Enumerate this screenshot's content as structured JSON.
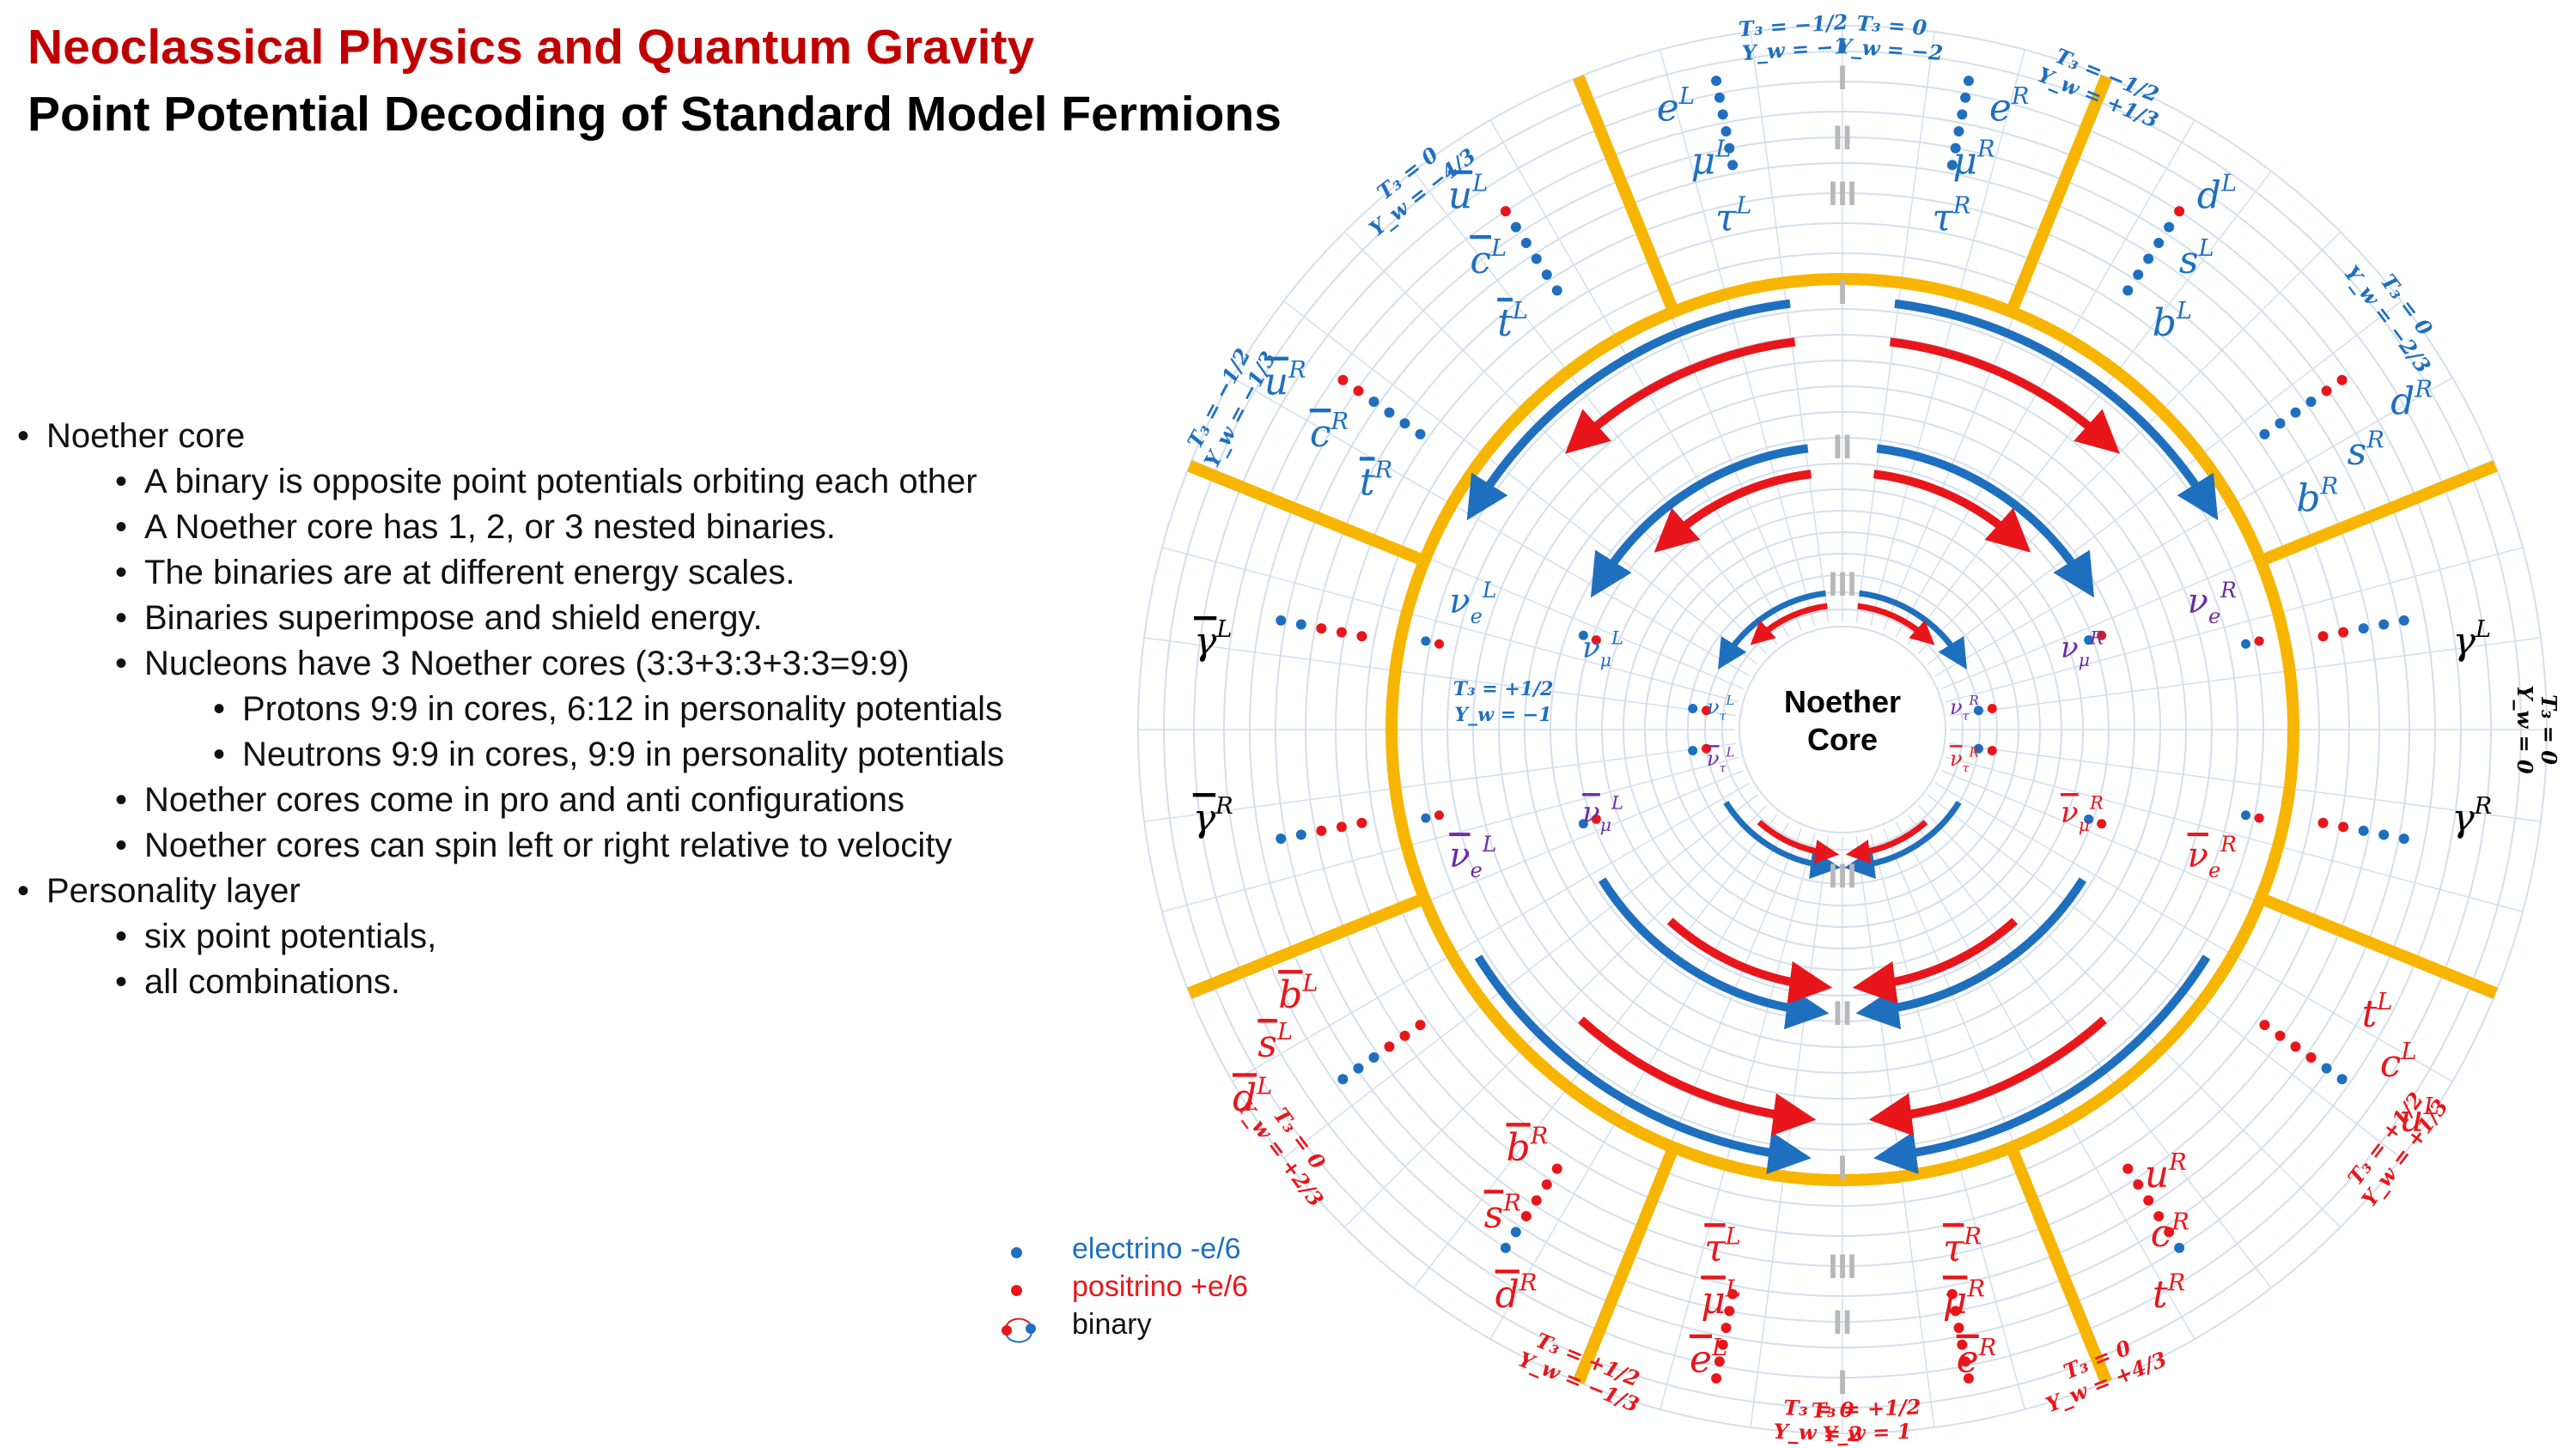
{
  "header": {
    "title": "Neoclassical Physics and Quantum Gravity",
    "subtitle": "Point Potential Decoding of Standard Model Fermions"
  },
  "bullets": [
    {
      "level": 0,
      "text": "Noether core"
    },
    {
      "level": 1,
      "text": "A binary is opposite point potentials orbiting each other"
    },
    {
      "level": 1,
      "text": "A Noether core has 1, 2, or 3 nested binaries."
    },
    {
      "level": 1,
      "text": "The binaries are at different energy scales."
    },
    {
      "level": 1,
      "text": "Binaries superimpose and shield energy."
    },
    {
      "level": 1,
      "text": "Nucleons have 3 Noether cores (3:3+3:3+3:3=9:9)"
    },
    {
      "level": 2,
      "text": "Protons 9:9 in cores, 6:12 in personality potentials"
    },
    {
      "level": 2,
      "text": "Neutrons 9:9 in cores, 9:9 in personality potentials"
    },
    {
      "level": 1,
      "text": "Noether cores come in pro and anti configurations"
    },
    {
      "level": 1,
      "text": "Noether cores can spin left or right relative to velocity"
    },
    {
      "level": 0,
      "text": "Personality layer"
    },
    {
      "level": 1,
      "text": "six point potentials,"
    },
    {
      "level": 1,
      "text": "all combinations."
    }
  ],
  "legend": {
    "electrino": "electrino -e/6",
    "positrino": "positrino +e/6",
    "binary": "binary"
  },
  "colors": {
    "blue": "#1f6fbf",
    "red": "#e8161b",
    "gold": "#f7b500",
    "grid": "#d3dfec",
    "purple": "#6a2fa0",
    "gray": "#b8b8b8"
  },
  "diagram": {
    "core_label": [
      "Noether",
      "Core"
    ],
    "generations": [
      "I",
      "II",
      "III"
    ],
    "quantum_numbers": [
      {
        "t3": "T₃ = −1/2",
        "yw": "Y_w = −1",
        "color": "blue"
      },
      {
        "t3": "T₃ = 0",
        "yw": "Y_w = −2",
        "color": "blue"
      },
      {
        "t3": "T₃ = −1/2",
        "yw": "Y_w = +1/3",
        "color": "blue"
      },
      {
        "t3": "T₃ = 0",
        "yw": "Y_w = −2/3",
        "color": "blue"
      },
      {
        "t3": "T₃ = 0",
        "yw": "Y_w = 0",
        "color": "black"
      },
      {
        "t3": "T₃ = +1/2",
        "yw": "Y_w = +1/3",
        "color": "red"
      },
      {
        "t3": "T₃ = 0",
        "yw": "Y_w = +4/3",
        "color": "red"
      },
      {
        "t3": "T₃ = +1/2",
        "yw": "Y_w = 1",
        "color": "red"
      },
      {
        "t3": "T₃ = 0",
        "yw": "Y_w = 2",
        "color": "red"
      },
      {
        "t3": "T₃ = +1/2",
        "yw": "Y_w = −1/3",
        "color": "red"
      },
      {
        "t3": "T₃ = 0",
        "yw": "Y_w = +2/3",
        "color": "red"
      },
      {
        "t3": "T₃ = −1/2",
        "yw": "Y_w = −1/3",
        "color": "blue"
      },
      {
        "t3": "T₃ = 0",
        "yw": "Y_w = −4/3",
        "color": "blue"
      }
    ],
    "neutrino_qn": {
      "t3": "T₃ = +1/2",
      "yw": "Y_w = −1"
    },
    "fermions": [
      {
        "base": "e",
        "sup": "L",
        "bar": false,
        "color": "blue"
      },
      {
        "base": "μ",
        "sup": "L",
        "bar": false,
        "color": "blue"
      },
      {
        "base": "τ",
        "sup": "L",
        "bar": false,
        "color": "blue"
      },
      {
        "base": "e",
        "sup": "R",
        "bar": false,
        "color": "blue"
      },
      {
        "base": "μ",
        "sup": "R",
        "bar": false,
        "color": "blue"
      },
      {
        "base": "τ",
        "sup": "R",
        "bar": false,
        "color": "blue"
      },
      {
        "base": "d",
        "sup": "L",
        "bar": false,
        "color": "blue"
      },
      {
        "base": "s",
        "sup": "L",
        "bar": false,
        "color": "blue"
      },
      {
        "base": "b",
        "sup": "L",
        "bar": false,
        "color": "blue"
      },
      {
        "base": "d",
        "sup": "R",
        "bar": false,
        "color": "blue"
      },
      {
        "base": "s",
        "sup": "R",
        "bar": false,
        "color": "blue"
      },
      {
        "base": "b",
        "sup": "R",
        "bar": false,
        "color": "blue"
      },
      {
        "base": "γ",
        "sup": "L",
        "bar": false,
        "color": "black"
      },
      {
        "base": "γ",
        "sup": "R",
        "bar": false,
        "color": "black"
      },
      {
        "base": "t",
        "sup": "L",
        "bar": false,
        "color": "red"
      },
      {
        "base": "c",
        "sup": "L",
        "bar": false,
        "color": "red"
      },
      {
        "base": "u",
        "sup": "L",
        "bar": false,
        "color": "red"
      },
      {
        "base": "t",
        "sup": "R",
        "bar": false,
        "color": "red"
      },
      {
        "base": "c",
        "sup": "R",
        "bar": false,
        "color": "red"
      },
      {
        "base": "u",
        "sup": "R",
        "bar": false,
        "color": "red"
      },
      {
        "base": "τ",
        "sup": "R",
        "bar": true,
        "color": "red"
      },
      {
        "base": "μ",
        "sup": "R",
        "bar": true,
        "color": "red"
      },
      {
        "base": "e",
        "sup": "R",
        "bar": true,
        "color": "red"
      },
      {
        "base": "τ",
        "sup": "L",
        "bar": true,
        "color": "red"
      },
      {
        "base": "μ",
        "sup": "L",
        "bar": true,
        "color": "red"
      },
      {
        "base": "e",
        "sup": "L",
        "bar": true,
        "color": "red"
      },
      {
        "base": "b",
        "sup": "R",
        "bar": true,
        "color": "red"
      },
      {
        "base": "s",
        "sup": "R",
        "bar": true,
        "color": "red"
      },
      {
        "base": "d",
        "sup": "R",
        "bar": true,
        "color": "red"
      },
      {
        "base": "b",
        "sup": "L",
        "bar": true,
        "color": "red"
      },
      {
        "base": "s",
        "sup": "L",
        "bar": true,
        "color": "red"
      },
      {
        "base": "d",
        "sup": "L",
        "bar": true,
        "color": "red"
      },
      {
        "base": "γ",
        "sup": "R",
        "bar": true,
        "color": "black"
      },
      {
        "base": "γ",
        "sup": "L",
        "bar": true,
        "color": "black"
      },
      {
        "base": "t",
        "sup": "R",
        "bar": true,
        "color": "blue"
      },
      {
        "base": "c",
        "sup": "R",
        "bar": true,
        "color": "blue"
      },
      {
        "base": "u",
        "sup": "R",
        "bar": true,
        "color": "blue"
      },
      {
        "base": "t",
        "sup": "L",
        "bar": true,
        "color": "blue"
      },
      {
        "base": "c",
        "sup": "L",
        "bar": true,
        "color": "blue"
      },
      {
        "base": "u",
        "sup": "L",
        "bar": true,
        "color": "blue"
      }
    ],
    "neutrinos": [
      {
        "base": "ν",
        "sub": "e",
        "sup": "R",
        "bar": false,
        "color": "purple"
      },
      {
        "base": "ν",
        "sub": "μ",
        "sup": "R",
        "bar": false,
        "color": "purple"
      },
      {
        "base": "ν",
        "sub": "τ",
        "sup": "R",
        "bar": false,
        "color": "purple"
      },
      {
        "base": "ν",
        "sub": "e",
        "sup": "L",
        "bar": false,
        "color": "blue"
      },
      {
        "base": "ν",
        "sub": "μ",
        "sup": "L",
        "bar": false,
        "color": "blue"
      },
      {
        "base": "ν",
        "sub": "τ",
        "sup": "L",
        "bar": false,
        "color": "blue"
      },
      {
        "base": "ν",
        "sub": "e",
        "sup": "R",
        "bar": true,
        "color": "red"
      },
      {
        "base": "ν",
        "sub": "μ",
        "sup": "R",
        "bar": true,
        "color": "red"
      },
      {
        "base": "ν",
        "sub": "τ",
        "sup": "R",
        "bar": true,
        "color": "red"
      },
      {
        "base": "ν",
        "sub": "e",
        "sup": "L",
        "bar": true,
        "color": "purple"
      },
      {
        "base": "ν",
        "sub": "μ",
        "sup": "L",
        "bar": true,
        "color": "purple"
      },
      {
        "base": "ν",
        "sub": "τ",
        "sup": "L",
        "bar": true,
        "color": "purple"
      }
    ]
  }
}
